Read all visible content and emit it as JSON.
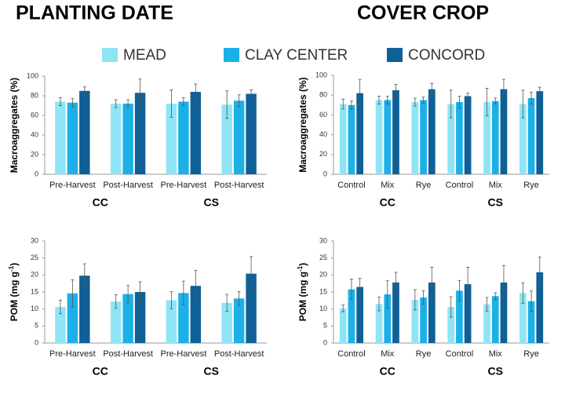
{
  "headers": [
    "PLANTING DATE",
    "COVER CROP"
  ],
  "chart_data": [
    {
      "type": "bar",
      "ylabel": [
        "Macroaggregates (%)"
      ],
      "ylim": [
        0,
        100
      ],
      "yticks": [
        0,
        20,
        40,
        60,
        80,
        100
      ],
      "groups": [
        {
          "name": "CC",
          "categories": [
            "Pre-Harvest",
            "Post-Harvest"
          ]
        },
        {
          "name": "CS",
          "categories": [
            "Pre-Harvest",
            "Post-Harvest"
          ]
        }
      ],
      "series": [
        {
          "name": "MEAD",
          "color": "#8fe4f6",
          "values": [
            74,
            72,
            72,
            71
          ],
          "errors": [
            4,
            4,
            14,
            14
          ]
        },
        {
          "name": "CLAY CENTER",
          "color": "#1cb0e8",
          "values": [
            73,
            72,
            74,
            75
          ],
          "errors": [
            4,
            4,
            4,
            6
          ]
        },
        {
          "name": "CONCORD",
          "color": "#0f6096",
          "values": [
            85,
            83,
            84,
            82
          ],
          "errors": [
            4,
            14,
            8,
            4
          ]
        }
      ]
    },
    {
      "type": "bar",
      "ylabel": [
        "Macroaggregates (%)"
      ],
      "ylim": [
        0,
        100
      ],
      "yticks": [
        0,
        20,
        40,
        60,
        80,
        100
      ],
      "groups": [
        {
          "name": "CC",
          "categories": [
            "Control",
            "Mix",
            "Rye"
          ]
        },
        {
          "name": "CS",
          "categories": [
            "Control",
            "Mix",
            "Rye"
          ]
        }
      ],
      "series": [
        {
          "name": "MEAD",
          "color": "#8fe4f6",
          "values": [
            71,
            75,
            73,
            71,
            73,
            71
          ],
          "errors": [
            5,
            4,
            4,
            14,
            14,
            14
          ]
        },
        {
          "name": "CLAY CENTER",
          "color": "#1cb0e8",
          "values": [
            70,
            75,
            75,
            73,
            74,
            77
          ],
          "errors": [
            4,
            4,
            3,
            6,
            3,
            6
          ]
        },
        {
          "name": "CONCORD",
          "color": "#0f6096",
          "values": [
            82,
            85,
            86,
            79,
            86,
            84
          ],
          "errors": [
            14,
            6,
            6,
            3,
            10,
            4
          ]
        }
      ]
    },
    {
      "type": "bar",
      "ylabel": [
        "POM (mg g",
        "-1",
        ")"
      ],
      "ylim": [
        0,
        30
      ],
      "yticks": [
        0,
        5,
        10,
        15,
        20,
        25,
        30
      ],
      "groups": [
        {
          "name": "CC",
          "categories": [
            "Pre-Harvest",
            "Post-Harvest"
          ]
        },
        {
          "name": "CS",
          "categories": [
            "Pre-Harvest",
            "Post-Harvest"
          ]
        }
      ],
      "series": [
        {
          "name": "MEAD",
          "color": "#8fe4f6",
          "values": [
            10.6,
            12.2,
            12.6,
            11.8
          ],
          "errors": [
            2,
            2,
            2.5,
            2.5
          ]
        },
        {
          "name": "CLAY CENTER",
          "color": "#1cb0e8",
          "values": [
            14.6,
            14.4,
            14.7,
            13.1
          ],
          "errors": [
            4,
            2.5,
            3.5,
            2
          ]
        },
        {
          "name": "CONCORD",
          "color": "#0f6096",
          "values": [
            19.8,
            15.0,
            16.8,
            20.4
          ],
          "errors": [
            3.5,
            3,
            4.5,
            5
          ]
        }
      ]
    },
    {
      "type": "bar",
      "ylabel": [
        "POM (mg g",
        "-1",
        ")"
      ],
      "ylim": [
        0,
        30
      ],
      "yticks": [
        0,
        5,
        10,
        15,
        20,
        25,
        30
      ],
      "groups": [
        {
          "name": "CC",
          "categories": [
            "Control",
            "Mix",
            "Rye"
          ]
        },
        {
          "name": "CS",
          "categories": [
            "Control",
            "Mix",
            "Rye"
          ]
        }
      ],
      "series": [
        {
          "name": "MEAD",
          "color": "#8fe4f6",
          "values": [
            10.2,
            11.5,
            12.7,
            10.6,
            11.4,
            14.7
          ],
          "errors": [
            1,
            2,
            3,
            3,
            2,
            3
          ]
        },
        {
          "name": "CLAY CENTER",
          "color": "#1cb0e8",
          "values": [
            15.8,
            14.3,
            13.4,
            15.4,
            13.8,
            12.3
          ],
          "errors": [
            3,
            4,
            2,
            3,
            1,
            3
          ]
        },
        {
          "name": "CONCORD",
          "color": "#0f6096",
          "values": [
            16.5,
            17.8,
            17.8,
            17.3,
            17.8,
            20.8
          ],
          "errors": [
            2.5,
            3,
            4.5,
            5,
            5,
            4.5
          ]
        }
      ]
    }
  ]
}
